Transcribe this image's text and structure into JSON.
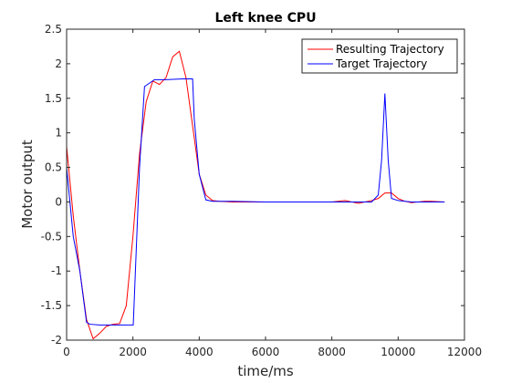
{
  "chart_data": {
    "type": "line",
    "title": "Left knee CPU",
    "xlabel": "time/ms",
    "ylabel": "Motor output",
    "xlim": [
      0,
      12000
    ],
    "ylim": [
      -2,
      2.5
    ],
    "xticks": [
      0,
      2000,
      4000,
      6000,
      8000,
      10000,
      12000
    ],
    "xtick_labels": [
      "0",
      "2000",
      "4000",
      "6000",
      "8000",
      "10000",
      "12000"
    ],
    "yticks": [
      -2,
      -1.5,
      -1,
      -0.5,
      0,
      0.5,
      1,
      1.5,
      2,
      2.5
    ],
    "ytick_labels": [
      "-2",
      "-1.5",
      "-1",
      "-0.5",
      "0",
      "0.5",
      "1",
      "1.5",
      "2",
      "2.5"
    ],
    "grid": false,
    "legend_position": "top-right",
    "series": [
      {
        "name": "Resulting Trajectory",
        "color": "#ff0000",
        "x": [
          0,
          200,
          400,
          600,
          800,
          1000,
          1200,
          1400,
          1600,
          1800,
          2000,
          2200,
          2400,
          2600,
          2800,
          3000,
          3200,
          3400,
          3600,
          3800,
          4000,
          4200,
          4400,
          4600,
          5000,
          5500,
          6000,
          6500,
          7000,
          7500,
          8000,
          8200,
          8400,
          8600,
          8800,
          9000,
          9200,
          9400,
          9600,
          9800,
          10000,
          10200,
          10400,
          10600,
          10800,
          11000,
          11400
        ],
        "y": [
          0.8,
          -0.2,
          -1.0,
          -1.7,
          -1.98,
          -1.9,
          -1.8,
          -1.77,
          -1.76,
          -1.5,
          -0.5,
          0.7,
          1.45,
          1.75,
          1.7,
          1.8,
          2.1,
          2.18,
          1.8,
          1.1,
          0.4,
          0.1,
          0.02,
          0.01,
          0.0,
          0.0,
          0.0,
          0.0,
          0.0,
          0.0,
          0.0,
          0.01,
          0.02,
          0.0,
          -0.02,
          0.0,
          0.02,
          0.05,
          0.13,
          0.13,
          0.05,
          0.01,
          -0.01,
          0.0,
          0.01,
          0.01,
          0.0
        ]
      },
      {
        "name": "Target Trajectory",
        "color": "#0000ff",
        "x": [
          0,
          200,
          400,
          600,
          700,
          1000,
          1400,
          1600,
          1800,
          2000,
          2010,
          2200,
          2350,
          2500,
          2650,
          2800,
          3000,
          3500,
          3800,
          3850,
          4000,
          4200,
          4400,
          5000,
          6000,
          7000,
          8000,
          8600,
          9000,
          9200,
          9400,
          9500,
          9600,
          9700,
          9800,
          10000,
          10400,
          11000,
          11400
        ],
        "y": [
          0.5,
          -0.5,
          -1.0,
          -1.74,
          -1.77,
          -1.78,
          -1.78,
          -1.78,
          -1.78,
          -1.78,
          -1.78,
          0.5,
          1.67,
          1.72,
          1.77,
          1.77,
          1.77,
          1.78,
          1.78,
          1.2,
          0.4,
          0.03,
          0.01,
          0.01,
          0.0,
          0.0,
          0.0,
          0.0,
          0.0,
          0.0,
          0.1,
          0.6,
          1.57,
          0.6,
          0.05,
          0.02,
          0.0,
          0.0,
          0.0
        ]
      }
    ]
  }
}
